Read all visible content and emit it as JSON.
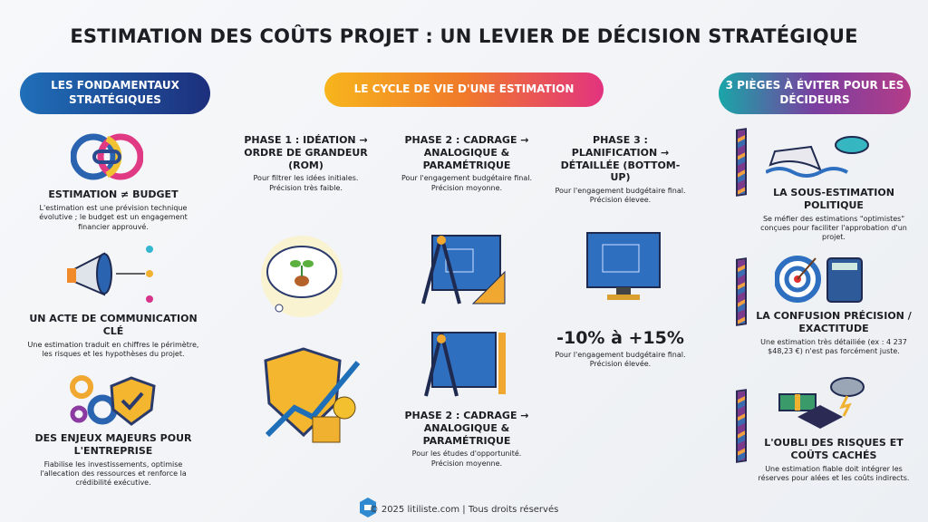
{
  "title": "ESTIMATION DES COÛTS PROJET : UN LEVIER DE DÉCISION STRATÉGIQUE",
  "headers": {
    "left": "LES FONDAMENTAUX STRATÉGIQUES",
    "center": "LE CYCLE DE VIE D'UNE ESTIMATION",
    "right": "3 PIÈGES À ÉVITER POUR LES DÉCIDEURS"
  },
  "left": [
    {
      "title": "ESTIMATION ≠ BUDGET",
      "desc": "L'estimation est une prévision technique évolutive ; le budget est un engagement financier approuvé.",
      "icon": "broken-link-icon"
    },
    {
      "title": "UN ACTE DE COMMUNICATION CLÉ",
      "desc": "Une estimation traduit en chiffres le périmètre, les risques et les hypothèses du projet.",
      "icon": "megaphone-icon"
    },
    {
      "title": "DES ENJEUX MAJEURS POUR L'ENTREPRISE",
      "desc": "Fiabilise les investissements, optimise l'allecation des ressources et renforce la crédibilité exécutive.",
      "icon": "gears-shield-icon"
    }
  ],
  "phases": [
    {
      "title": "PHASE 1 : IDÉATION → ORDRE DE GRANDEUR (ROM)",
      "desc": "Pour filtrer les idées initiales. Précision très faible.",
      "icon": "idea-cloud-icon"
    },
    {
      "title": "PHASE 2 : CADRAGE → ANALOGIQUE & PARAMÉTRIQUE",
      "desc": "Pour l'engagement budgétaire final. Précision moyonne.",
      "icon": "blueprint-compass-icon"
    },
    {
      "title": "PHASE 3 : PLANIFICATION → DÉTAILLÉE (BOTTOM-UP)",
      "desc": "Pour l'engagement budgétaire final. Précision élevee.",
      "icon": "blueprint-monitor-icon"
    },
    {
      "title": "PHASE 2 : CADRAGE → ANALOGIQUE & PARAMÉTRIQUE",
      "desc": "Pour les études d'opportunité. Précision moyenne.",
      "icon": "blueprint-compass-icon"
    }
  ],
  "phase3_range": {
    "value": "-10% à +15%",
    "desc": "Pour l'engagement budgétaire final. Précision élevée."
  },
  "right": [
    {
      "title": "LA SOUS-ESTIMATION POLITIQUE",
      "desc": "Se méfier des estimations \"optimistes\" conçues pour faciliter l'approbation d'un projet.",
      "icon": "sinking-ship-mask-icon"
    },
    {
      "title": "LA CONFUSION PRÉCISION / EXACTITUDE",
      "desc": "Une estimation très détailiée (ex : 4 237 $48,23 €) n'est pas forcément juste.",
      "icon": "target-calculator-icon"
    },
    {
      "title": "L'OUBLI DES RISQUES ET COÛTS CACHÉS",
      "desc": "Une estimation fiable doit intégrer les réserves pour alées et les coûts indirects.",
      "icon": "money-storm-icon"
    }
  ],
  "footer": "© 2025 litiliste.com | Tous droits réservés"
}
